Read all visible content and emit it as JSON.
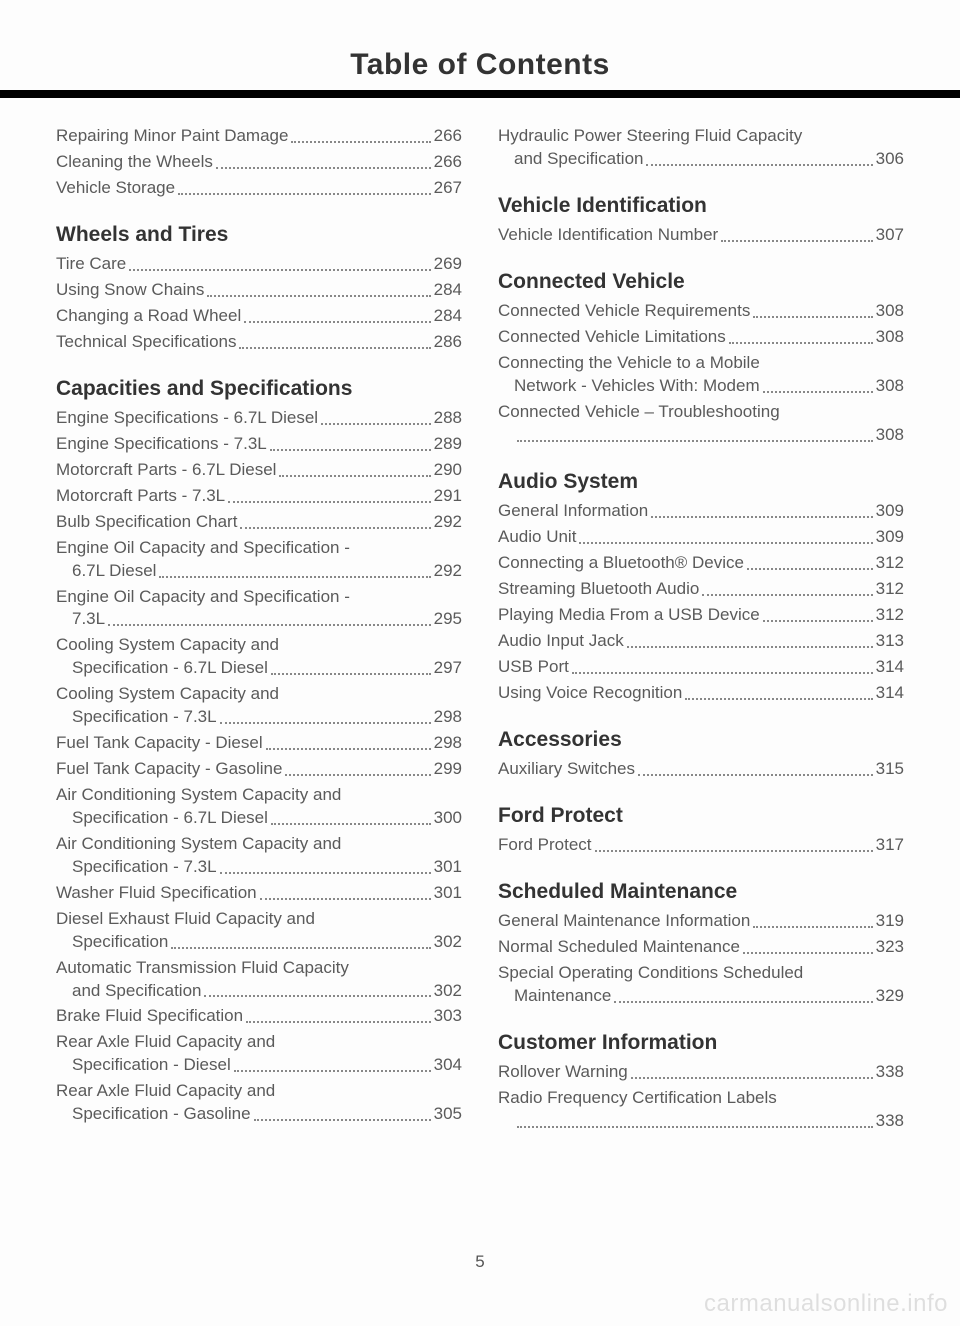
{
  "title": "Table of Contents",
  "page_number": "5",
  "watermark": "carmanualsonline.info",
  "left": {
    "intro_entries": [
      {
        "label": "Repairing Minor Paint Damage",
        "page": "266"
      },
      {
        "label": "Cleaning the Wheels",
        "page": "266"
      },
      {
        "label": "Vehicle Storage",
        "page": "267"
      }
    ],
    "sections": [
      {
        "heading": "Wheels and Tires",
        "entries": [
          {
            "label": "Tire Care",
            "page": "269"
          },
          {
            "label": "Using Snow Chains",
            "page": "284"
          },
          {
            "label": "Changing a Road Wheel",
            "page": "284"
          },
          {
            "label": "Technical Specifications",
            "page": "286"
          }
        ]
      },
      {
        "heading": "Capacities and Specifications",
        "entries": [
          {
            "label": "Engine Specifications - 6.7L Diesel",
            "page": "288"
          },
          {
            "label": "Engine Specifications - 7.3L",
            "page": "289"
          },
          {
            "label": "Motorcraft Parts - 6.7L Diesel",
            "page": "290"
          },
          {
            "label": "Motorcraft Parts - 7.3L",
            "page": "291"
          },
          {
            "label": "Bulb Specification Chart",
            "page": "292"
          },
          {
            "multi": true,
            "line1": "Engine Oil Capacity and Specification -",
            "line2": "6.7L Diesel",
            "page": "292"
          },
          {
            "multi": true,
            "line1": "Engine Oil Capacity and Specification -",
            "line2": "7.3L",
            "page": "295"
          },
          {
            "multi": true,
            "line1": "Cooling System Capacity and",
            "line2": "Specification - 6.7L Diesel",
            "page": "297"
          },
          {
            "multi": true,
            "line1": "Cooling System Capacity and",
            "line2": "Specification - 7.3L",
            "page": "298"
          },
          {
            "label": "Fuel Tank Capacity - Diesel",
            "page": "298"
          },
          {
            "label": "Fuel Tank Capacity - Gasoline",
            "page": "299"
          },
          {
            "multi": true,
            "line1": "Air Conditioning System Capacity and",
            "line2": "Specification - 6.7L Diesel",
            "page": "300"
          },
          {
            "multi": true,
            "line1": "Air Conditioning System Capacity and",
            "line2": "Specification - 7.3L",
            "page": "301"
          },
          {
            "label": "Washer Fluid Specification",
            "page": "301"
          },
          {
            "multi": true,
            "line1": "Diesel Exhaust Fluid Capacity and",
            "line2": "Specification",
            "page": "302"
          },
          {
            "multi": true,
            "line1": "Automatic Transmission Fluid Capacity",
            "line2": "and Specification",
            "page": "302"
          },
          {
            "label": "Brake Fluid Specification",
            "page": "303"
          },
          {
            "multi": true,
            "line1": "Rear Axle Fluid Capacity and",
            "line2": "Specification - Diesel",
            "page": "304"
          },
          {
            "multi": true,
            "line1": "Rear Axle Fluid Capacity and",
            "line2": "Specification - Gasoline",
            "page": "305"
          }
        ]
      }
    ]
  },
  "right": {
    "intro_entries": [
      {
        "multi": true,
        "line1": "Hydraulic Power Steering Fluid Capacity",
        "line2": "and Specification",
        "page": "306"
      }
    ],
    "sections": [
      {
        "heading": "Vehicle Identification",
        "entries": [
          {
            "label": "Vehicle Identification Number",
            "page": "307"
          }
        ]
      },
      {
        "heading": "Connected Vehicle",
        "entries": [
          {
            "label": "Connected Vehicle Requirements",
            "page": "308"
          },
          {
            "label": "Connected Vehicle Limitations",
            "page": "308"
          },
          {
            "multi": true,
            "line1": "Connecting the Vehicle to a Mobile",
            "line2": "Network - Vehicles With: Modem",
            "page": "308"
          },
          {
            "multi": true,
            "line1": "Connected Vehicle – Troubleshooting",
            "line2": "",
            "page": "308"
          }
        ]
      },
      {
        "heading": "Audio System",
        "entries": [
          {
            "label": "General Information",
            "page": "309"
          },
          {
            "label": "Audio Unit",
            "page": "309"
          },
          {
            "label": "Connecting a Bluetooth® Device",
            "page": "312"
          },
          {
            "label": "Streaming Bluetooth Audio",
            "page": "312"
          },
          {
            "label": "Playing Media From a USB Device",
            "page": "312"
          },
          {
            "label": "Audio Input Jack",
            "page": "313"
          },
          {
            "label": "USB Port",
            "page": "314"
          },
          {
            "label": "Using Voice Recognition",
            "page": "314"
          }
        ]
      },
      {
        "heading": "Accessories",
        "entries": [
          {
            "label": "Auxiliary Switches",
            "page": "315"
          }
        ]
      },
      {
        "heading": "Ford Protect",
        "entries": [
          {
            "label": "Ford Protect",
            "page": "317"
          }
        ]
      },
      {
        "heading": "Scheduled Maintenance",
        "entries": [
          {
            "label": "General Maintenance Information",
            "page": "319"
          },
          {
            "label": "Normal Scheduled Maintenance",
            "page": "323"
          },
          {
            "multi": true,
            "line1": "Special Operating Conditions Scheduled",
            "line2": "Maintenance",
            "page": "329"
          }
        ]
      },
      {
        "heading": "Customer Information",
        "entries": [
          {
            "label": "Rollover Warning",
            "page": "338"
          },
          {
            "multi": true,
            "line1": "Radio Frequency Certification Labels",
            "line2": "",
            "page": "338"
          }
        ]
      }
    ]
  }
}
